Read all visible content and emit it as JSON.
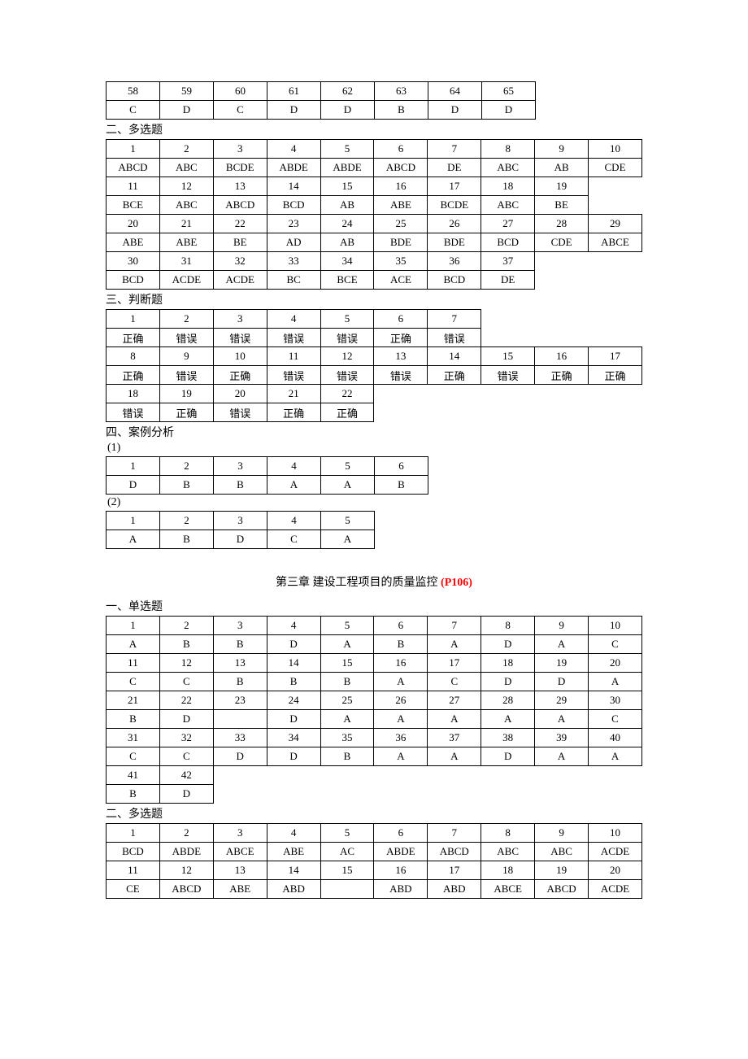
{
  "table_cell_width": 65,
  "table_border_color": "#000000",
  "background_color": "#ffffff",
  "font_size": 13,
  "top_table": {
    "rows": [
      [
        "58",
        "59",
        "60",
        "61",
        "62",
        "63",
        "64",
        "65"
      ],
      [
        "C",
        "D",
        "C",
        "D",
        "D",
        "B",
        "D",
        "D"
      ]
    ]
  },
  "sect2_label": "二、多选题",
  "sect2_table": {
    "rows": [
      [
        "1",
        "2",
        "3",
        "4",
        "5",
        "6",
        "7",
        "8",
        "9",
        "10"
      ],
      [
        "ABCD",
        "ABC",
        "BCDE",
        "ABDE",
        "ABDE",
        "ABCD",
        "DE",
        "ABC",
        "AB",
        "CDE"
      ],
      [
        "11",
        "12",
        "13",
        "14",
        "15",
        "16",
        "17",
        "18",
        "19",
        ""
      ],
      [
        "BCE",
        "ABC",
        "ABCD",
        "BCD",
        "AB",
        "ABE",
        "BCDE",
        "ABC",
        "BE",
        ""
      ],
      [
        "20",
        "21",
        "22",
        "23",
        "24",
        "25",
        "26",
        "27",
        "28",
        "29"
      ],
      [
        "ABE",
        "ABE",
        "BE",
        "AD",
        "AB",
        "BDE",
        "BDE",
        "BCD",
        "CDE",
        "ABCE"
      ],
      [
        "30",
        "31",
        "32",
        "33",
        "34",
        "35",
        "36",
        "37",
        "",
        ""
      ],
      [
        "BCD",
        "ACDE",
        "ACDE",
        "BC",
        "BCE",
        "ACE",
        "BCD",
        "DE",
        "",
        ""
      ]
    ],
    "row_lengths": [
      10,
      10,
      9,
      9,
      10,
      10,
      8,
      8
    ]
  },
  "sect3_label": "三、判断题",
  "sect3_table": {
    "rows": [
      [
        "1",
        "2",
        "3",
        "4",
        "5",
        "6",
        "7"
      ],
      [
        "正确",
        "错误",
        "错误",
        "错误",
        "错误",
        "正确",
        "错误"
      ],
      [
        "8",
        "9",
        "10",
        "11",
        "12",
        "13",
        "14",
        "15",
        "16",
        "17"
      ],
      [
        "正确",
        "错误",
        "正确",
        "错误",
        "错误",
        "错误",
        "正确",
        "错误",
        "正确",
        "正确"
      ],
      [
        "18",
        "19",
        "20",
        "21",
        "22"
      ],
      [
        "错误",
        "正确",
        "错误",
        "正确",
        "正确"
      ]
    ],
    "row_lengths": [
      7,
      7,
      10,
      10,
      5,
      5
    ]
  },
  "sect4_label": "四、案例分析",
  "case1_label": "(1)",
  "case1_table": {
    "rows": [
      [
        "1",
        "2",
        "3",
        "4",
        "5",
        "6"
      ],
      [
        "D",
        "B",
        "B",
        "A",
        "A",
        "B"
      ]
    ]
  },
  "case2_label": "(2)",
  "case2_table": {
    "rows": [
      [
        "1",
        "2",
        "3",
        "4",
        "5"
      ],
      [
        "A",
        "B",
        "D",
        "C",
        "A"
      ]
    ]
  },
  "chapter_title_black": "第三章    建设工程项目的质量监控",
  "chapter_title_red": "(P106)",
  "ch3_sect1_label": "一、单选题",
  "ch3_sect1_table": {
    "rows": [
      [
        "1",
        "2",
        "3",
        "4",
        "5",
        "6",
        "7",
        "8",
        "9",
        "10"
      ],
      [
        "A",
        "B",
        "B",
        "D",
        "A",
        "B",
        "A",
        "D",
        "A",
        "C"
      ],
      [
        "11",
        "12",
        "13",
        "14",
        "15",
        "16",
        "17",
        "18",
        "19",
        "20"
      ],
      [
        "C",
        "C",
        "B",
        "B",
        "B",
        "A",
        "C",
        "D",
        "D",
        "A"
      ],
      [
        "21",
        "22",
        "23",
        "24",
        "25",
        "26",
        "27",
        "28",
        "29",
        "30"
      ],
      [
        "B",
        "D",
        "",
        "D",
        "A",
        "A",
        "A",
        "A",
        "A",
        "C"
      ],
      [
        "31",
        "32",
        "33",
        "34",
        "35",
        "36",
        "37",
        "38",
        "39",
        "40"
      ],
      [
        "C",
        "C",
        "D",
        "D",
        "B",
        "A",
        "A",
        "D",
        "A",
        "A"
      ],
      [
        "41",
        "42"
      ],
      [
        "B",
        "D"
      ]
    ],
    "row_lengths": [
      10,
      10,
      10,
      10,
      10,
      10,
      10,
      10,
      2,
      2
    ]
  },
  "ch3_sect2_label": "二、多选题",
  "ch3_sect2_table": {
    "rows": [
      [
        "1",
        "2",
        "3",
        "4",
        "5",
        "6",
        "7",
        "8",
        "9",
        "10"
      ],
      [
        "BCD",
        "ABDE",
        "ABCE",
        "ABE",
        "AC",
        "ABDE",
        "ABCD",
        "ABC",
        "ABC",
        "ACDE"
      ],
      [
        "11",
        "12",
        "13",
        "14",
        "15",
        "16",
        "17",
        "18",
        "19",
        "20"
      ],
      [
        "CE",
        "ABCD",
        "ABE",
        "ABD",
        "",
        "ABD",
        "ABD",
        "ABCE",
        "ABCD",
        "ACDE"
      ]
    ]
  }
}
